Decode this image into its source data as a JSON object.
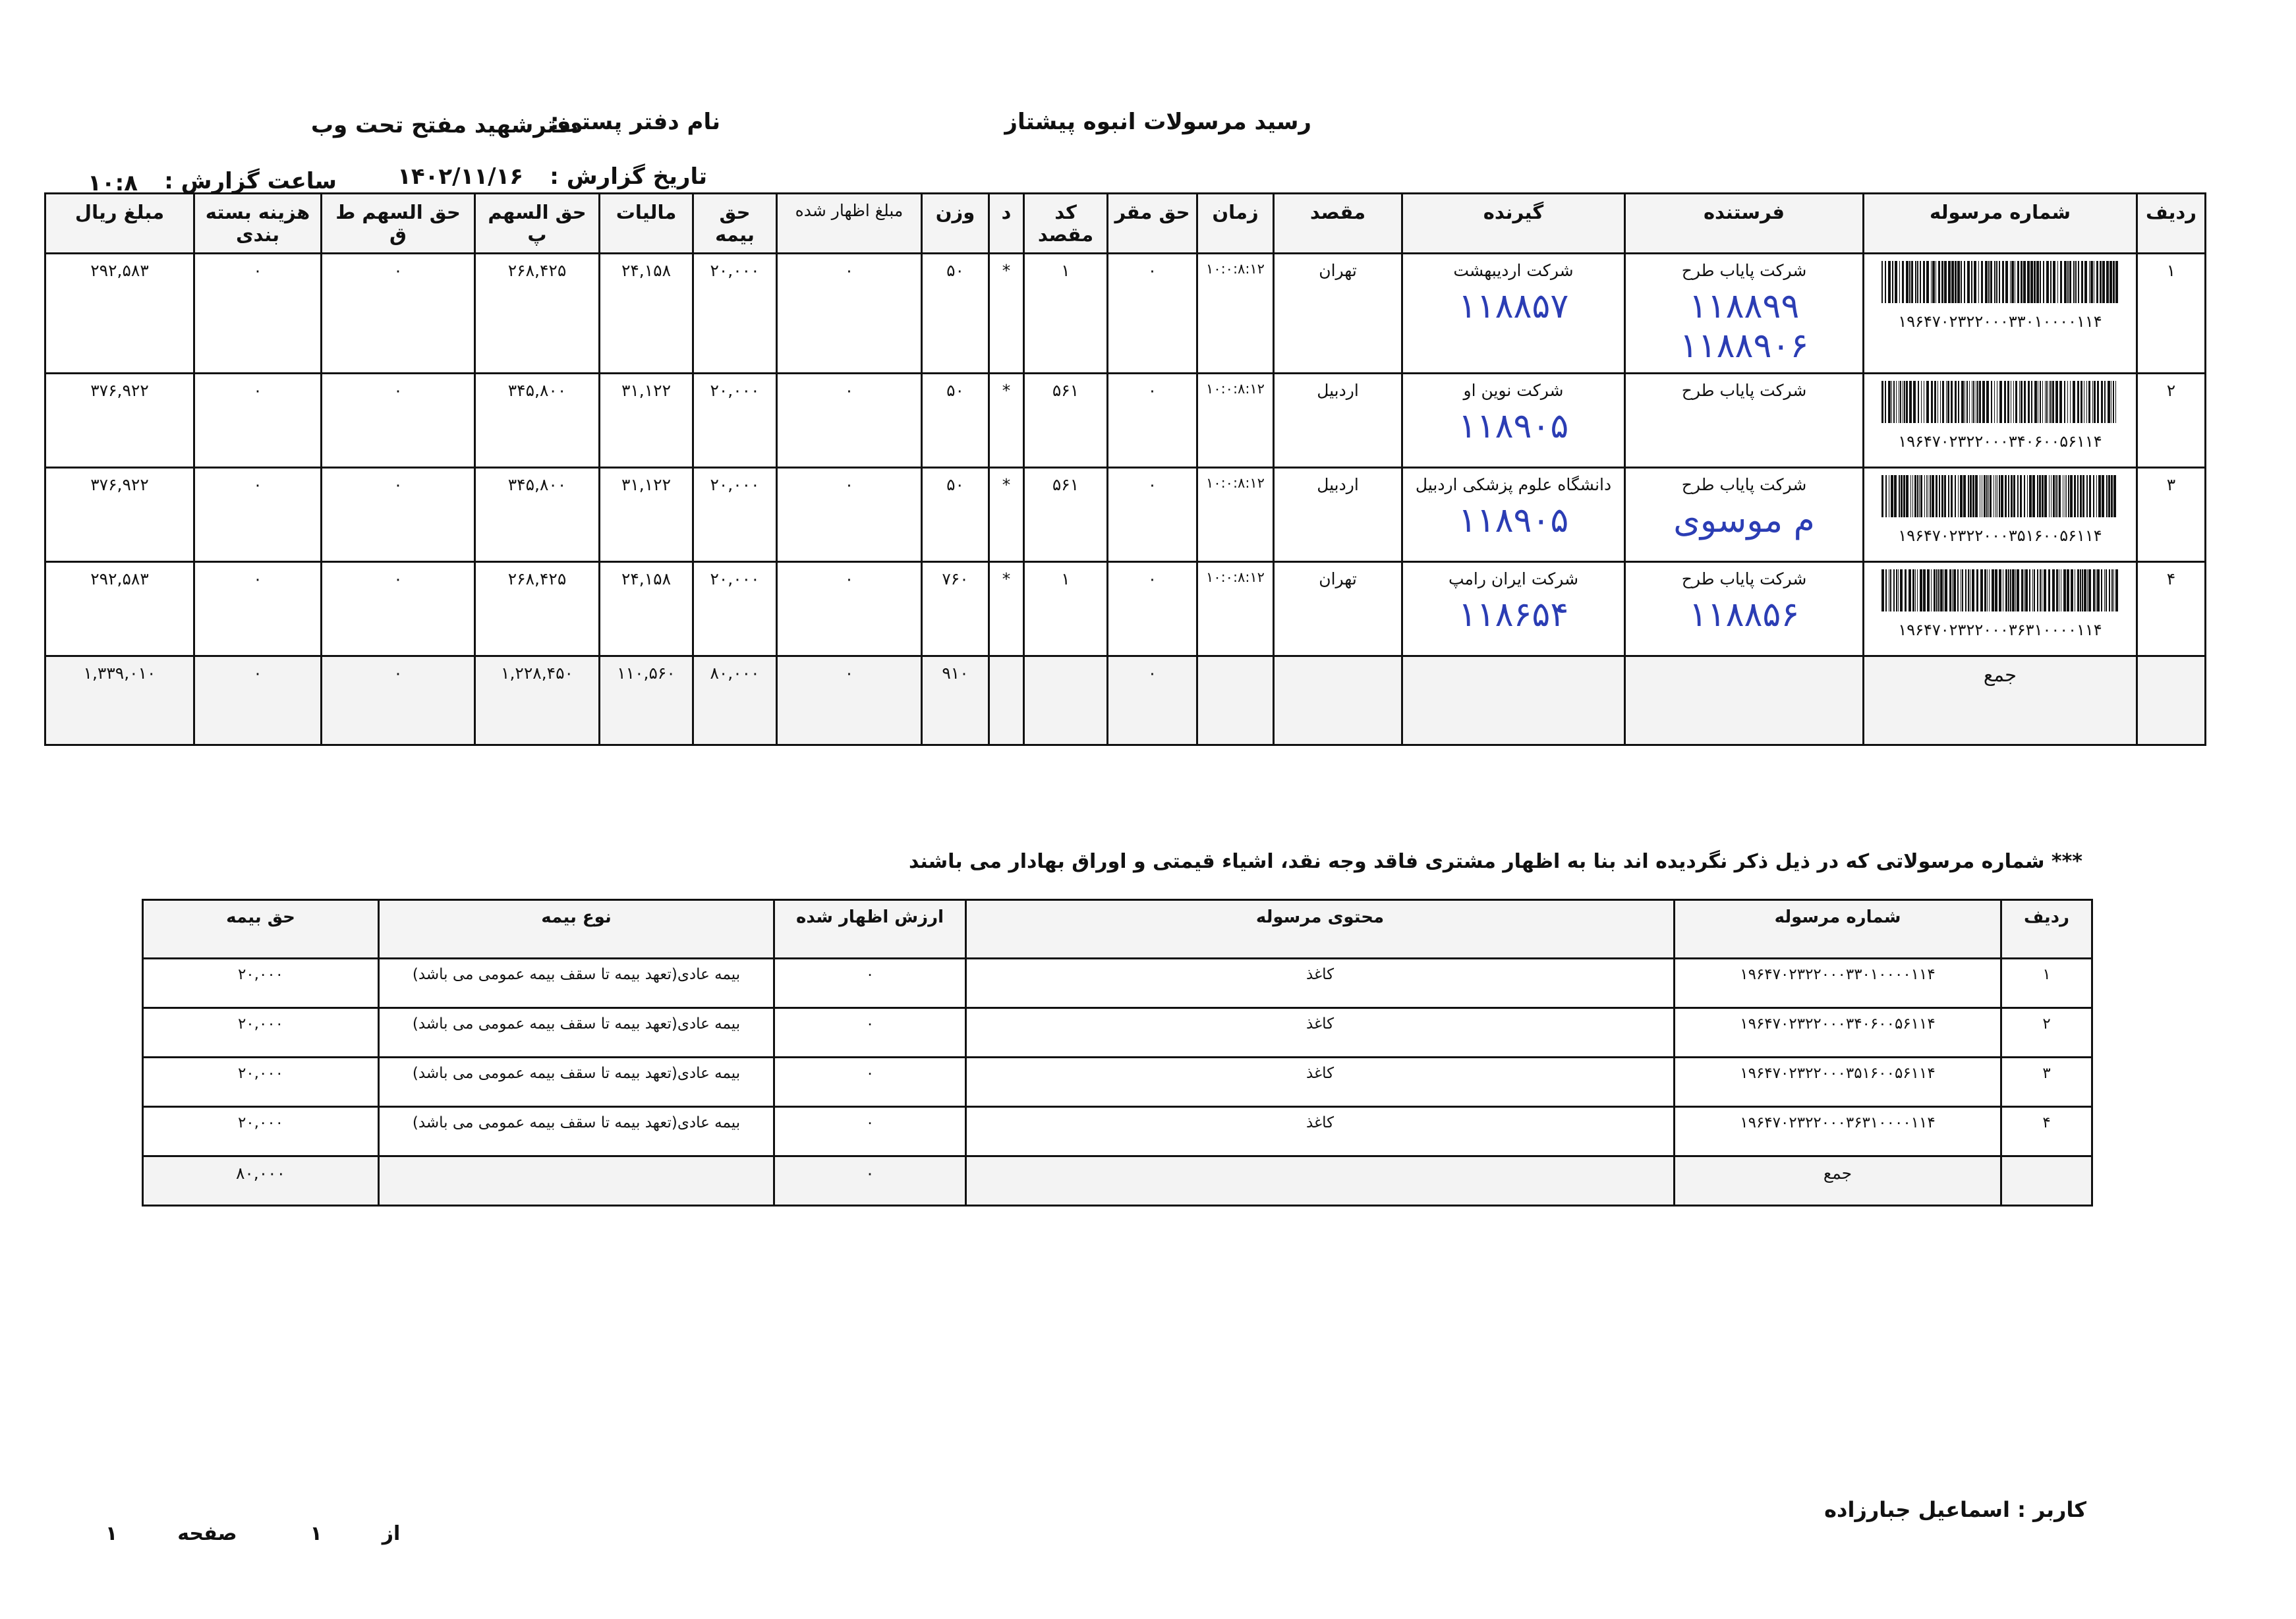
{
  "header": {
    "title": "رسید مرسولات انبوه   پیشتاز",
    "office_label": "نام دفتر پستی:",
    "office_value": "دفترشهید مفتح تحت وب",
    "date_label": "تاریخ گزارش :",
    "date_value": "۱۴۰۲/۱۱/۱۶",
    "time_label": "ساعت گزارش :",
    "time_value": "۱۰:۸"
  },
  "main_table": {
    "columns": [
      "ردیف",
      "شماره مرسوله",
      "فرستنده",
      "گیرنده",
      "مقصد",
      "زمان",
      "حق مقر",
      "کد مقصد",
      "د",
      "وزن",
      "مبلغ اظهار شده",
      "حق بیمه",
      "مالیات",
      "حق السهم پ",
      "حق السهم ط ق",
      "هزینه بسته بندی",
      "مبلغ ریال"
    ],
    "rows": [
      {
        "row": "۱",
        "tracking": "۱۹۶۴۷۰۲۳۲۲۰۰۰۳۳۰۱۰۰۰۰۱۱۴",
        "sender": "شرکت پایاب طرح",
        "sender_note": "۱۱۸۸۹۹ ۱۱۸۸۹۰۶",
        "receiver": "شرکت اردیبهشت",
        "receiver_note": "۱۱۸۸۵۷",
        "destination": "تهران",
        "time": "۱۰:۰:۸:۱۲",
        "base_fee": "۰",
        "dest_code": "۱",
        "d": "*",
        "weight": "۵۰",
        "declared": "۰",
        "insurance": "۲۰,۰۰۰",
        "tax": "۲۴,۱۵۸",
        "share_p": "۲۶۸,۴۲۵",
        "share_tq": "۰",
        "packaging": "۰",
        "amount": "۲۹۲,۵۸۳"
      },
      {
        "row": "۲",
        "tracking": "۱۹۶۴۷۰۲۳۲۲۰۰۰۳۴۰۶۰۰۵۶۱۱۴",
        "sender": "شرکت پایاب طرح",
        "sender_note": "",
        "receiver": "شرکت نوین او",
        "receiver_note": "۱۱۸۹۰۵",
        "destination": "اردبیل",
        "time": "۱۰:۰:۸:۱۲",
        "base_fee": "۰",
        "dest_code": "۵۶۱",
        "d": "*",
        "weight": "۵۰",
        "declared": "۰",
        "insurance": "۲۰,۰۰۰",
        "tax": "۳۱,۱۲۲",
        "share_p": "۳۴۵,۸۰۰",
        "share_tq": "۰",
        "packaging": "۰",
        "amount": "۳۷۶,۹۲۲"
      },
      {
        "row": "۳",
        "tracking": "۱۹۶۴۷۰۲۳۲۲۰۰۰۳۵۱۶۰۰۵۶۱۱۴",
        "sender": "شرکت پایاب طرح",
        "sender_note": "م موسوی",
        "receiver": "دانشگاه علوم پزشکی اردبیل",
        "receiver_note": "۱۱۸۹۰۵",
        "destination": "اردبیل",
        "time": "۱۰:۰:۸:۱۲",
        "base_fee": "۰",
        "dest_code": "۵۶۱",
        "d": "*",
        "weight": "۵۰",
        "declared": "۰",
        "insurance": "۲۰,۰۰۰",
        "tax": "۳۱,۱۲۲",
        "share_p": "۳۴۵,۸۰۰",
        "share_tq": "۰",
        "packaging": "۰",
        "amount": "۳۷۶,۹۲۲"
      },
      {
        "row": "۴",
        "tracking": "۱۹۶۴۷۰۲۳۲۲۰۰۰۳۶۳۱۰۰۰۰۱۱۴",
        "sender": "شرکت پایاب طرح",
        "sender_note": "۱۱۸۸۵۶",
        "receiver": "شرکت ایران رامپ",
        "receiver_note": "۱۱۸۶۵۴",
        "destination": "تهران",
        "time": "۱۰:۰:۸:۱۲",
        "base_fee": "۰",
        "dest_code": "۱",
        "d": "*",
        "weight": "۷۶۰",
        "declared": "۰",
        "insurance": "۲۰,۰۰۰",
        "tax": "۲۴,۱۵۸",
        "share_p": "۲۶۸,۴۲۵",
        "share_tq": "۰",
        "packaging": "۰",
        "amount": "۲۹۲,۵۸۳"
      }
    ],
    "total": {
      "label": "جمع",
      "base_fee": "۰",
      "weight": "۹۱۰",
      "declared": "۰",
      "insurance": "۸۰,۰۰۰",
      "tax": "۱۱۰,۵۶۰",
      "share_p": "۱,۲۲۸,۴۵۰",
      "share_tq": "۰",
      "packaging": "۰",
      "amount": "۱,۳۳۹,۰۱۰"
    }
  },
  "note": "*** شماره مرسولاتی که در ذیل ذکر نگردیده اند بنا به اظهار مشتری فاقد وجه نقد، اشیاء قیمتی و اوراق بهادار می باشند",
  "insurance_table": {
    "columns": [
      "ردیف",
      "شماره مرسوله",
      "محتوی مرسوله",
      "ارزش اظهار شده",
      "نوع بیمه",
      "حق بیمه"
    ],
    "rows": [
      {
        "row": "۱",
        "tracking": "۱۹۶۴۷۰۲۳۲۲۰۰۰۳۳۰۱۰۰۰۰۱۱۴",
        "content": "کاغذ",
        "declared": "۰",
        "type": "بیمه عادی(تعهد بیمه تا سقف بیمه عمومی می باشد)",
        "premium": "۲۰,۰۰۰"
      },
      {
        "row": "۲",
        "tracking": "۱۹۶۴۷۰۲۳۲۲۰۰۰۳۴۰۶۰۰۵۶۱۱۴",
        "content": "کاغذ",
        "declared": "۰",
        "type": "بیمه عادی(تعهد بیمه تا سقف بیمه عمومی می باشد)",
        "premium": "۲۰,۰۰۰"
      },
      {
        "row": "۳",
        "tracking": "۱۹۶۴۷۰۲۳۲۲۰۰۰۳۵۱۶۰۰۵۶۱۱۴",
        "content": "کاغذ",
        "declared": "۰",
        "type": "بیمه عادی(تعهد بیمه تا سقف بیمه عمومی می باشد)",
        "premium": "۲۰,۰۰۰"
      },
      {
        "row": "۴",
        "tracking": "۱۹۶۴۷۰۲۳۲۲۰۰۰۳۶۳۱۰۰۰۰۱۱۴",
        "content": "کاغذ",
        "declared": "۰",
        "type": "بیمه عادی(تعهد بیمه تا سقف بیمه عمومی می باشد)",
        "premium": "۲۰,۰۰۰"
      }
    ],
    "total": {
      "label": "جمع",
      "declared": "۰",
      "premium": "۸۰,۰۰۰"
    }
  },
  "footer": {
    "user": "کاربر : اسماعیل جبارزاده",
    "page_label": "صفحه",
    "page_current": "۱",
    "page_of": "از",
    "page_total": "۱"
  },
  "colors": {
    "ink": "#111111",
    "handwriting": "#2b3db4"
  }
}
